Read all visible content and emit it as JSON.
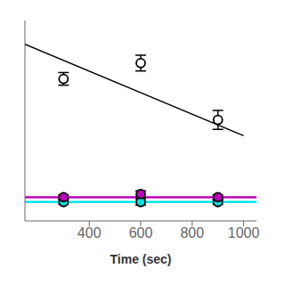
{
  "chart_data": {
    "type": "scatter",
    "xlabel": "Time (sec)",
    "xlim": [
      150,
      1050
    ],
    "xticks": [
      400,
      600,
      800,
      1000
    ],
    "ylim": [
      -0.12,
      1.15
    ],
    "tick_labels": "x",
    "series": [
      {
        "type": "hline",
        "y": 0.0,
        "color": "#00e5e5"
      },
      {
        "type": "hline",
        "y": 0.03,
        "color": "#bb00bb"
      },
      {
        "type": "line",
        "x": [
          150,
          1000
        ],
        "values": [
          1.0,
          0.42
        ],
        "color": "#000000"
      },
      {
        "type": "scatter",
        "x": [
          300,
          600,
          900
        ],
        "values": [
          0.78,
          0.88,
          0.52
        ],
        "errors": [
          0.04,
          0.05,
          0.06
        ],
        "color": "#000000",
        "marker": "open_circle"
      },
      {
        "type": "scatter",
        "x": [
          300,
          600,
          900
        ],
        "values": [
          0.0,
          0.0,
          0.0
        ],
        "errors": [
          0.015,
          0.02,
          0.015
        ],
        "color": "#00e5e5",
        "marker": "circle"
      },
      {
        "type": "scatter",
        "x": [
          300,
          600,
          900
        ],
        "values": [
          0.03,
          0.05,
          0.03
        ],
        "errors": [
          0.015,
          0.02,
          0.015
        ],
        "color": "#bb00bb",
        "marker": "circle"
      }
    ]
  }
}
